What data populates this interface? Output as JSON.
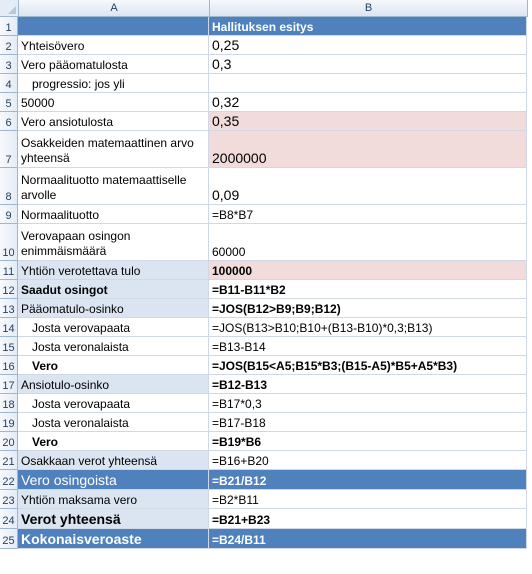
{
  "sheet": {
    "column_headers": [
      "A",
      "B"
    ],
    "rows": [
      {
        "num": "1",
        "a": "",
        "b": "Hallituksen esitys"
      },
      {
        "num": "2",
        "a": "Yhteisövero",
        "b": "0,25"
      },
      {
        "num": "3",
        "a": "Vero pääomatulosta",
        "b": "0,3"
      },
      {
        "num": "4",
        "a": "progressio: jos yli",
        "b": ""
      },
      {
        "num": "5",
        "a": "50000",
        "b": "0,32"
      },
      {
        "num": "6",
        "a": "Vero ansiotulosta",
        "b": "0,35"
      },
      {
        "num": "7",
        "a": "Osakkeiden matemaattinen arvo yhteensä",
        "b": "2000000"
      },
      {
        "num": "8",
        "a": "Normaalituotto matemaattiselle arvolle",
        "b": "0,09"
      },
      {
        "num": "9",
        "a": "Normaalituotto",
        "b": "=B8*B7"
      },
      {
        "num": "10",
        "a": "Verovapaan osingon enimmäismäärä",
        "b": "60000"
      },
      {
        "num": "11",
        "a": "Yhtiön verotettava tulo",
        "b": "100000"
      },
      {
        "num": "12",
        "a": "Saadut osingot",
        "b": "=B11-B11*B2"
      },
      {
        "num": "13",
        "a": "Pääomatulo-osinko",
        "b": "=JOS(B12>B9;B9;B12)"
      },
      {
        "num": "14",
        "a": "Josta verovapaata",
        "b": "=JOS(B13>B10;B10+(B13-B10)*0,3;B13)"
      },
      {
        "num": "15",
        "a": "Josta veronalaista",
        "b": "=B13-B14"
      },
      {
        "num": "16",
        "a": "Vero",
        "b": "=JOS(B15<A5;B15*B3;(B15-A5)*B5+A5*B3)"
      },
      {
        "num": "17",
        "a": "Ansiotulo-osinko",
        "b": "=B12-B13"
      },
      {
        "num": "18",
        "a": "Josta verovapaata",
        "b": "=B17*0,3"
      },
      {
        "num": "19",
        "a": "Josta veronalaista",
        "b": "=B17-B18"
      },
      {
        "num": "20",
        "a": "Vero",
        "b": "=B19*B6"
      },
      {
        "num": "21",
        "a": "Osakkaan verot yhteensä",
        "b": "=B16+B20"
      },
      {
        "num": "22",
        "a": "Vero osingoista",
        "b": "=B21/B12"
      },
      {
        "num": "23",
        "a": "Yhtiön maksama vero",
        "b": "=B2*B11"
      },
      {
        "num": "24",
        "a": "Verot yhteensä",
        "b": "=B21+B23"
      },
      {
        "num": "25",
        "a": "Kokonaisveroaste",
        "b": "=B24/B11"
      }
    ]
  },
  "colors": {
    "header_blue": "#4f81bd",
    "light_blue": "#dbe5f1",
    "pink": "#f2dcdb",
    "gridline": "#d0d7e5"
  }
}
